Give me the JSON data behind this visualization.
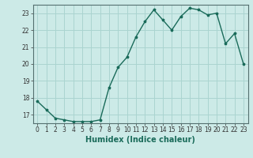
{
  "x": [
    0,
    1,
    2,
    3,
    4,
    5,
    6,
    7,
    8,
    9,
    10,
    11,
    12,
    13,
    14,
    15,
    16,
    17,
    18,
    19,
    20,
    21,
    22,
    23
  ],
  "y": [
    17.8,
    17.3,
    16.8,
    16.7,
    16.6,
    16.6,
    16.6,
    16.7,
    18.6,
    19.8,
    20.4,
    21.6,
    22.5,
    23.2,
    22.6,
    22.0,
    22.8,
    23.3,
    23.2,
    22.9,
    23.0,
    21.2,
    21.8,
    20.0
  ],
  "line_color": "#1a6b5a",
  "marker": "*",
  "marker_size": 2.5,
  "bg_color": "#cceae7",
  "grid_color": "#aad4d0",
  "xlabel": "Humidex (Indice chaleur)",
  "ylim": [
    16.5,
    23.5
  ],
  "xlim": [
    -0.5,
    23.5
  ],
  "yticks": [
    17,
    18,
    19,
    20,
    21,
    22,
    23
  ],
  "xticks": [
    0,
    1,
    2,
    3,
    4,
    5,
    6,
    7,
    8,
    9,
    10,
    11,
    12,
    13,
    14,
    15,
    16,
    17,
    18,
    19,
    20,
    21,
    22,
    23
  ],
  "tick_label_fontsize": 5.5,
  "xlabel_fontsize": 7,
  "linewidth": 1.0
}
